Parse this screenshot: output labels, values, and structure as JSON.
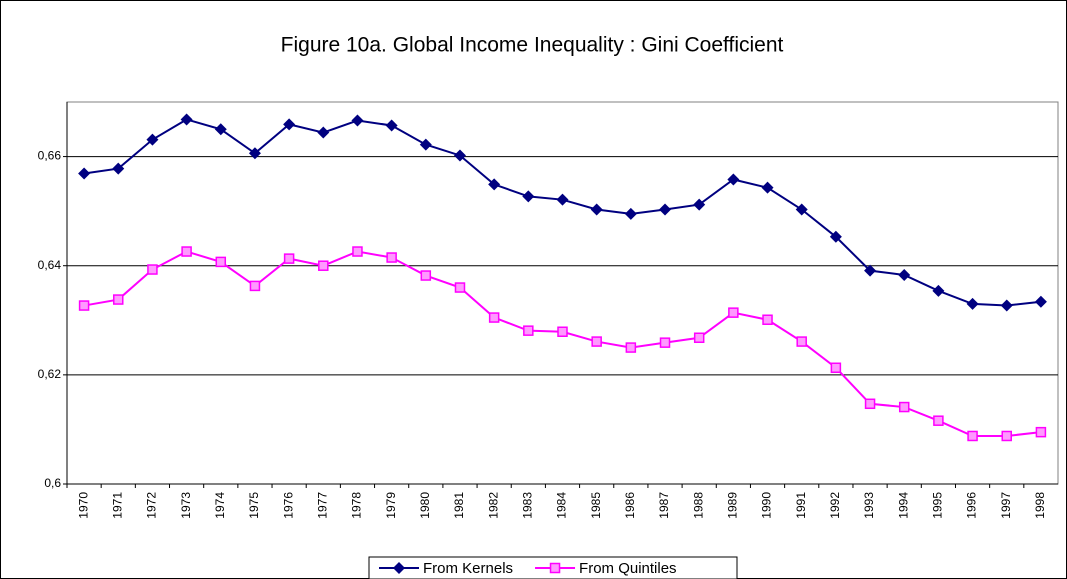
{
  "chart_data": {
    "type": "line",
    "title": "Figure 10a. Global Income Inequality : Gini Coefficient",
    "categories": [
      "1970",
      "1971",
      "1972",
      "1973",
      "1974",
      "1975",
      "1976",
      "1977",
      "1978",
      "1979",
      "1980",
      "1981",
      "1982",
      "1983",
      "1984",
      "1985",
      "1986",
      "1987",
      "1988",
      "1989",
      "1990",
      "1991",
      "1992",
      "1993",
      "1994",
      "1995",
      "1996",
      "1997",
      "1998"
    ],
    "series": [
      {
        "name": "From Kernels",
        "color": "#000080",
        "marker": "diamond",
        "values": [
          0.6569,
          0.6578,
          0.6631,
          0.6668,
          0.665,
          0.6606,
          0.6659,
          0.6644,
          0.6666,
          0.6657,
          0.6622,
          0.6602,
          0.6549,
          0.6527,
          0.6521,
          0.6503,
          0.6495,
          0.6503,
          0.6512,
          0.6558,
          0.6543,
          0.6503,
          0.6453,
          0.6391,
          0.6383,
          0.6354,
          0.633,
          0.6327,
          0.6334
        ]
      },
      {
        "name": "From Quintiles",
        "color": "#ff00ff",
        "marker": "square",
        "values": [
          0.6327,
          0.6338,
          0.6393,
          0.6426,
          0.6407,
          0.6363,
          0.6413,
          0.64,
          0.6426,
          0.6415,
          0.6382,
          0.636,
          0.6305,
          0.6281,
          0.6279,
          0.6261,
          0.625,
          0.6259,
          0.6268,
          0.6314,
          0.6301,
          0.6261,
          0.6213,
          0.6147,
          0.6141,
          0.6116,
          0.6088,
          0.6088,
          0.6095
        ]
      }
    ],
    "ylim": [
      0.6,
      0.67
    ],
    "yticks": [
      {
        "value": 0.6,
        "label": "0,6"
      },
      {
        "value": 0.62,
        "label": "0,62"
      },
      {
        "value": 0.64,
        "label": "0,64"
      },
      {
        "value": 0.66,
        "label": "0,66"
      }
    ],
    "grid": true,
    "legend": "bottom"
  }
}
